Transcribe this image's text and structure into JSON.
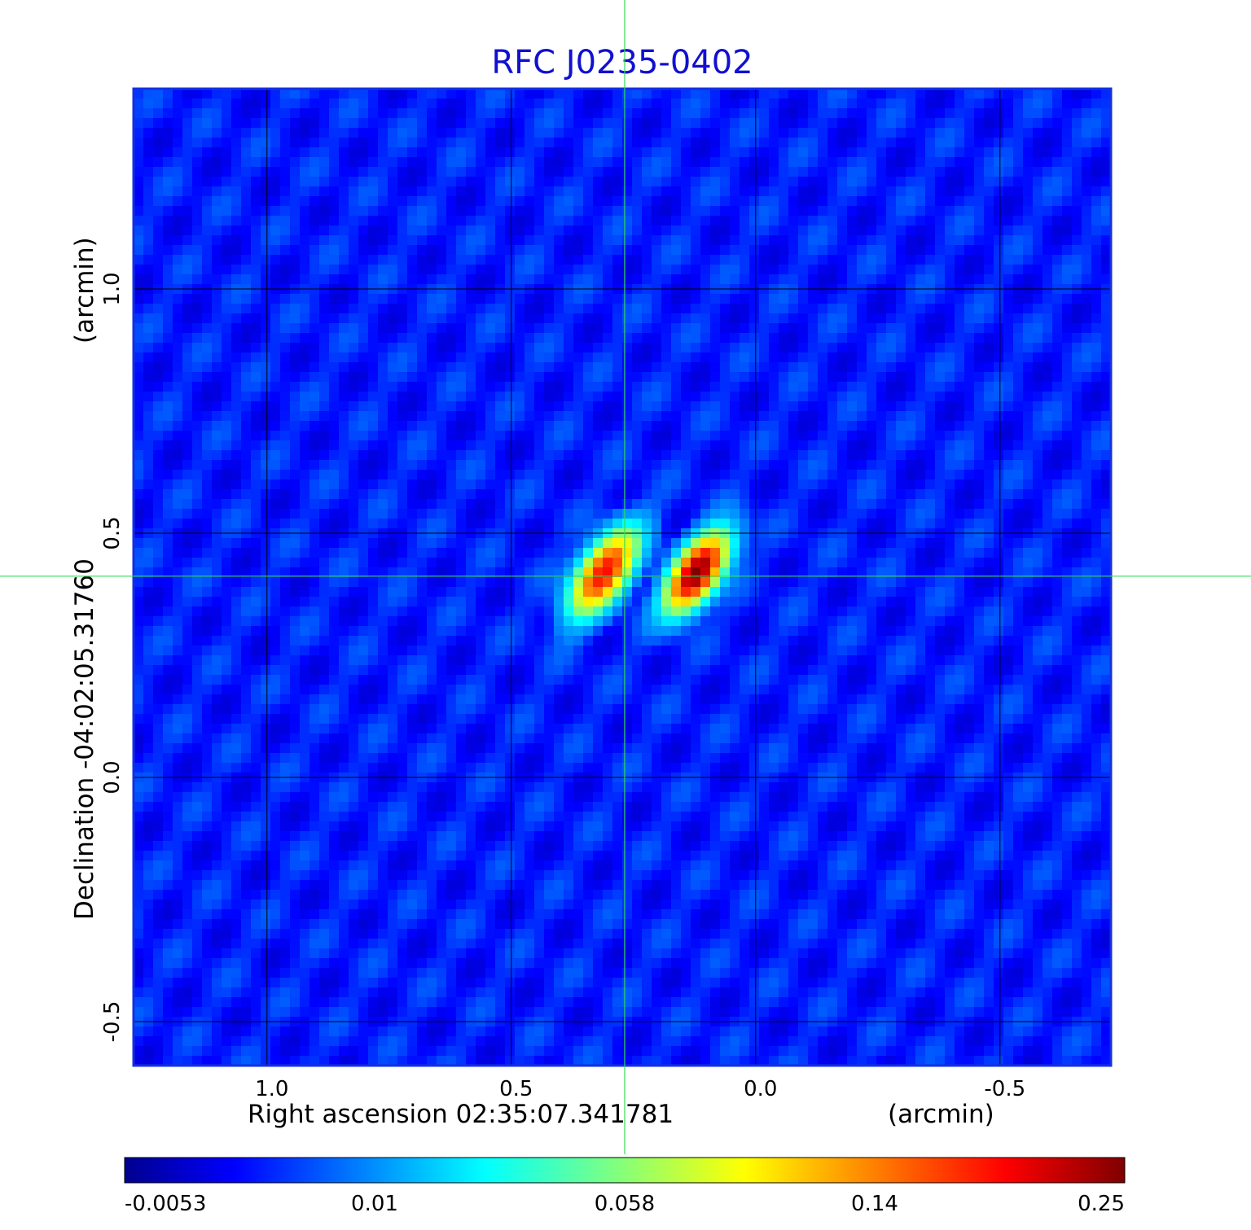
{
  "chart_data": {
    "type": "heatmap",
    "title": "RFC J0235-0402",
    "xlabel": "Right ascension  02:35:07.341781",
    "xlabel_unit": "(arcmin)",
    "ylabel": "Declination -04:02:05.31760",
    "ylabel_unit": "(arcmin)",
    "x_ticks": [
      1.0,
      0.5,
      0.0,
      -0.5
    ],
    "x_tick_labels": [
      "1.0",
      "0.5",
      "0.0",
      "-0.5"
    ],
    "y_ticks": [
      1.0,
      0.5,
      0.0,
      -0.5
    ],
    "y_tick_labels": [
      "1.0",
      "0.5",
      "0.0",
      "-0.5"
    ],
    "xlim": [
      1.273,
      -0.727
    ],
    "ylim": [
      -0.59,
      1.41
    ],
    "grid": true,
    "crosshair": {
      "x": 0.268,
      "y": 0.412,
      "color": "#33dd55"
    },
    "background_level": 0.004,
    "components": [
      {
        "x": 0.31,
        "y": 0.42,
        "peak": 0.19,
        "sigma_major": 0.06,
        "sigma_minor": 0.028,
        "pa_deg": -55
      },
      {
        "x": 0.12,
        "y": 0.42,
        "peak": 0.25,
        "sigma_major": 0.055,
        "sigma_minor": 0.026,
        "pa_deg": -55
      }
    ],
    "colorbar": {
      "colormap": "jet",
      "ticks": [
        -0.0053,
        0.01,
        0.058,
        0.14,
        0.25
      ],
      "tick_labels": [
        "-0.0053",
        "0.01",
        "0.058",
        "0.14",
        "0.25"
      ],
      "range": [
        -0.0053,
        0.25
      ]
    }
  }
}
